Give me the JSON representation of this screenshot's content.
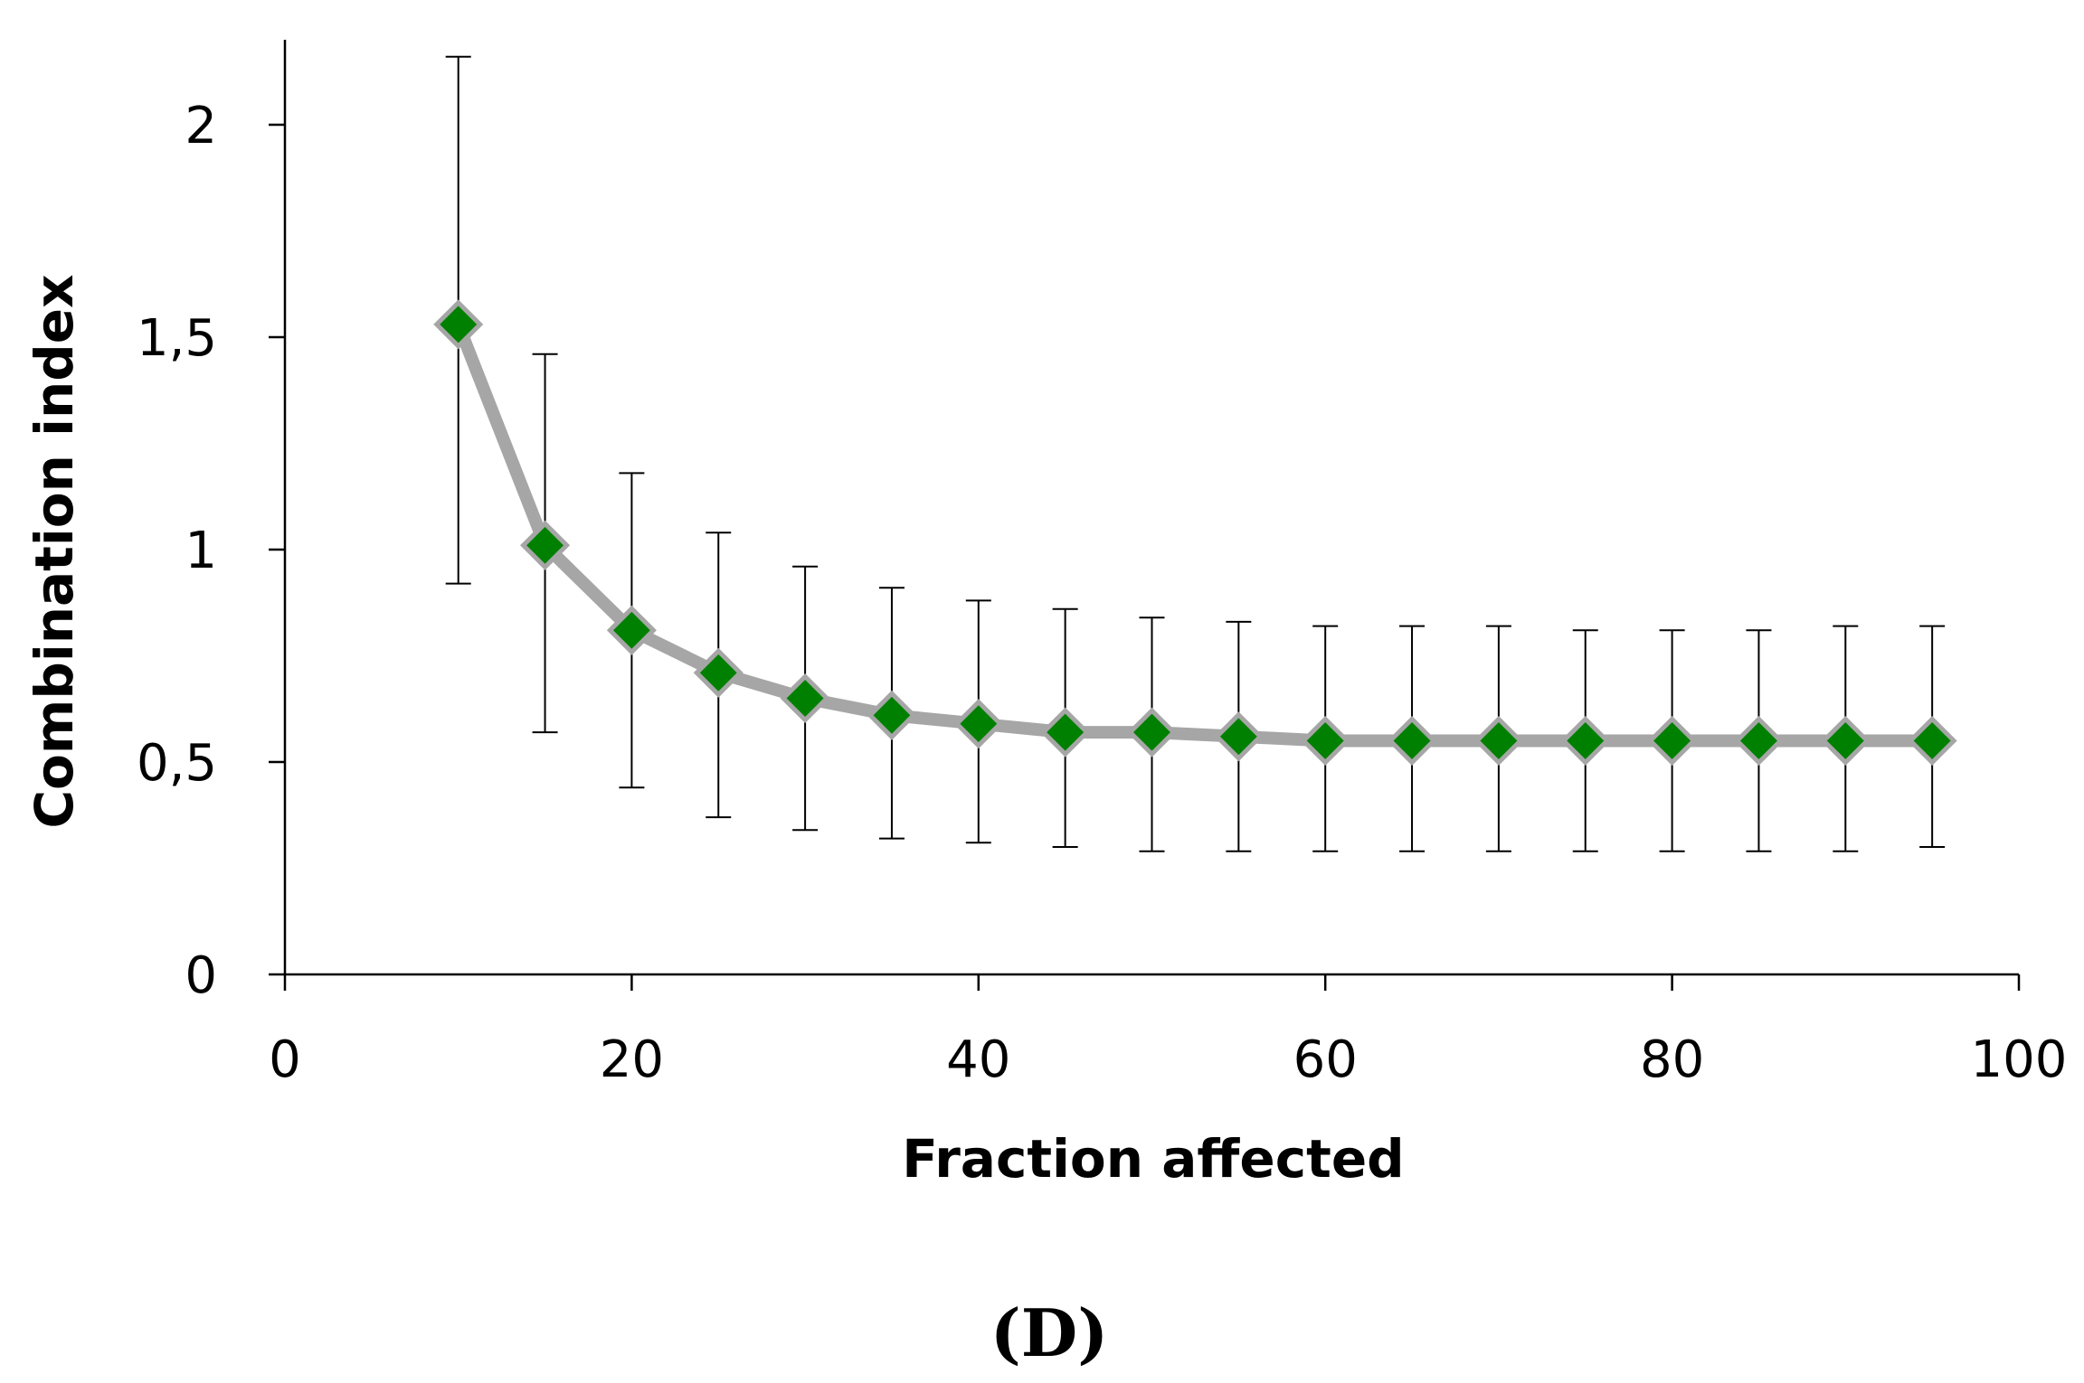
{
  "chart_data": {
    "type": "line",
    "title": "",
    "xlabel": "Fraction affected",
    "ylabel": "Combination index",
    "panel_label": "(D)",
    "xlim": [
      0,
      100
    ],
    "ylim": [
      0,
      2.2
    ],
    "x_ticks": [
      {
        "value": 0,
        "label": "0"
      },
      {
        "value": 20,
        "label": "20"
      },
      {
        "value": 40,
        "label": "40"
      },
      {
        "value": 60,
        "label": "60"
      },
      {
        "value": 80,
        "label": "80"
      },
      {
        "value": 100,
        "label": "100"
      }
    ],
    "y_ticks": [
      {
        "value": 0,
        "label": "0"
      },
      {
        "value": 0.5,
        "label": "0,5"
      },
      {
        "value": 1,
        "label": "1"
      },
      {
        "value": 1.5,
        "label": "1,5"
      },
      {
        "value": 2,
        "label": "2"
      }
    ],
    "grid": false,
    "legend": "none",
    "colors": {
      "marker_fill": "#008000",
      "marker_edge": "#a6a6a6",
      "line": "#a6a6a6",
      "error_bar": "#000000",
      "axis": "#000000"
    },
    "series": [
      {
        "name": "Combination index",
        "x": [
          10,
          15,
          20,
          25,
          30,
          35,
          40,
          45,
          50,
          55,
          60,
          65,
          70,
          75,
          80,
          85,
          90,
          95
        ],
        "y": [
          1.53,
          1.01,
          0.81,
          0.71,
          0.65,
          0.61,
          0.59,
          0.57,
          0.57,
          0.56,
          0.55,
          0.55,
          0.55,
          0.55,
          0.55,
          0.55,
          0.55,
          0.55
        ],
        "error_upper": [
          2.16,
          1.46,
          1.18,
          1.04,
          0.96,
          0.91,
          0.88,
          0.86,
          0.84,
          0.83,
          0.82,
          0.82,
          0.82,
          0.81,
          0.81,
          0.81,
          0.82,
          0.82
        ],
        "error_lower": [
          0.92,
          0.57,
          0.44,
          0.37,
          0.34,
          0.32,
          0.31,
          0.3,
          0.29,
          0.29,
          0.29,
          0.29,
          0.29,
          0.29,
          0.29,
          0.29,
          0.29,
          0.3
        ]
      }
    ]
  }
}
